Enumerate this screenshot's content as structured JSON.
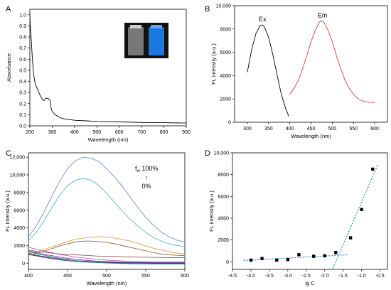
{
  "chart_data": [
    {
      "panel": "A",
      "type": "line",
      "xlabel": "Wavelength (nm)",
      "ylabel": "Absorbance",
      "xlim": [
        200,
        900
      ],
      "ylim": [
        0,
        1.05
      ],
      "x_ticks": [
        200,
        300,
        400,
        500,
        600,
        700,
        800,
        900
      ],
      "y_ticks": [
        0,
        0.1,
        0.2,
        0.3,
        0.4,
        0.5,
        0.6,
        0.7,
        0.8,
        0.9,
        1.0
      ],
      "y_tick_labels": [
        "0.0",
        "0.1",
        "0.2",
        "0.3",
        "0.4",
        "0.5",
        "0.6",
        "0.7",
        "0.8",
        "0.9",
        "1.0"
      ],
      "series": [
        {
          "color": "#000000",
          "x": [
            200,
            202,
            205,
            210,
            215,
            220,
            225,
            230,
            240,
            250,
            258,
            265,
            270,
            280,
            290,
            295,
            300,
            310,
            320,
            330,
            340,
            360,
            400,
            450,
            500,
            600,
            700,
            800,
            900
          ],
          "y": [
            1.0,
            0.9,
            0.82,
            0.65,
            0.5,
            0.42,
            0.37,
            0.35,
            0.3,
            0.26,
            0.23,
            0.23,
            0.245,
            0.25,
            0.23,
            0.16,
            0.13,
            0.105,
            0.09,
            0.08,
            0.07,
            0.06,
            0.05,
            0.045,
            0.04,
            0.035,
            0.03,
            0.028,
            0.025
          ]
        }
      ],
      "inset_colors": [
        "#9a9a9a",
        "#1a78e0"
      ]
    },
    {
      "panel": "B",
      "type": "line",
      "xlabel": "Wavelength (nm)",
      "ylabel": "FL intensity (a.u.)",
      "xlim": [
        270,
        630
      ],
      "ylim": [
        0,
        10000
      ],
      "x_ticks": [
        300,
        350,
        400,
        450,
        500,
        550,
        600
      ],
      "y_ticks": [
        0,
        2000,
        4000,
        6000,
        8000,
        10000
      ],
      "y_tick_labels": [
        "0",
        "2000",
        "4000",
        "6000",
        "8000",
        "10,000"
      ],
      "series": [
        {
          "name": "Ex",
          "color": "#000000",
          "x": [
            300,
            310,
            320,
            330,
            335,
            340,
            350,
            360,
            370,
            380,
            390,
            398
          ],
          "y": [
            4300,
            6200,
            7600,
            8300,
            8350,
            8200,
            7300,
            5800,
            4100,
            2400,
            1200,
            500
          ]
        },
        {
          "name": "Em",
          "color": "#e8382c",
          "x": [
            400,
            410,
            420,
            430,
            440,
            450,
            460,
            470,
            475,
            480,
            490,
            500,
            510,
            520,
            530,
            540,
            550,
            560,
            570,
            580,
            590,
            600
          ],
          "y": [
            2400,
            2900,
            3600,
            4600,
            5700,
            6900,
            7900,
            8600,
            8700,
            8600,
            7900,
            6900,
            5700,
            4600,
            3600,
            2900,
            2400,
            2050,
            1850,
            1750,
            1700,
            1680
          ]
        }
      ]
    },
    {
      "panel": "C",
      "type": "line",
      "xlabel": "Wavelength (nm)",
      "ylabel": "FL intensity (a.u.)",
      "xlim": [
        400,
        600
      ],
      "ylim": [
        -700,
        12500
      ],
      "x_ticks": [
        400,
        450,
        500,
        550,
        600
      ],
      "y_ticks": [
        0,
        2000,
        4000,
        6000,
        8000,
        10000,
        12000
      ],
      "y_tick_labels": [
        "0",
        "2000",
        "4000",
        "6000",
        "8000",
        "10,000",
        "12,000"
      ],
      "x": [
        400,
        410,
        420,
        430,
        440,
        450,
        460,
        470,
        480,
        490,
        500,
        510,
        520,
        530,
        540,
        550,
        560,
        570,
        580,
        590,
        600
      ],
      "series": [
        {
          "color": "#6a8fd6",
          "values": [
            3000,
            4200,
            5800,
            7600,
            9300,
            10700,
            11600,
            12000,
            11900,
            11500,
            10700,
            9800,
            8700,
            7500,
            6300,
            5200,
            4300,
            3500,
            3000,
            2600,
            2400
          ]
        },
        {
          "color": "#52b8d8",
          "values": [
            2600,
            3500,
            4800,
            6300,
            7700,
            8800,
            9400,
            9600,
            9400,
            8800,
            7900,
            6900,
            5900,
            5000,
            4200,
            3500,
            2900,
            2500,
            2200,
            2000,
            1900
          ]
        },
        {
          "color": "#e0a040",
          "values": [
            1100,
            1300,
            1550,
            1850,
            2150,
            2450,
            2700,
            2850,
            2950,
            3000,
            2950,
            2850,
            2700,
            2500,
            2250,
            1950,
            1700,
            1500,
            1300,
            1150,
            1050
          ]
        },
        {
          "color": "#8a6a3a",
          "values": [
            900,
            1100,
            1350,
            1650,
            1950,
            2200,
            2400,
            2500,
            2500,
            2450,
            2350,
            2200,
            2000,
            1800,
            1600,
            1400,
            1200,
            1050,
            950,
            900,
            850
          ]
        },
        {
          "color": "#9a5a5a",
          "values": [
            1500,
            1350,
            1250,
            1150,
            1050,
            1000,
            950,
            900,
            850,
            800,
            780,
            750,
            730,
            710,
            690,
            680,
            660,
            650,
            640,
            630,
            620
          ]
        },
        {
          "color": "#c060c0",
          "values": [
            1800,
            1600,
            1400,
            1200,
            1000,
            850,
            700,
            600,
            500,
            400,
            350,
            300,
            250,
            220,
            200,
            180,
            170,
            160,
            150,
            150,
            150
          ]
        },
        {
          "color": "#7a40b0",
          "values": [
            1400,
            1200,
            1000,
            850,
            700,
            550,
            450,
            350,
            280,
            220,
            180,
            150,
            120,
            100,
            90,
            80,
            70,
            60,
            60,
            60,
            60
          ]
        },
        {
          "color": "#303080",
          "values": [
            1100,
            900,
            750,
            600,
            480,
            380,
            300,
            230,
            180,
            140,
            110,
            90,
            70,
            60,
            50,
            40,
            30,
            30,
            30,
            30,
            30
          ]
        },
        {
          "color": "#404040",
          "values": [
            1000,
            820,
            650,
            500,
            380,
            280,
            200,
            140,
            100,
            70,
            50,
            30,
            20,
            10,
            0,
            -10,
            -20,
            -20,
            -20,
            -20,
            -20
          ]
        },
        {
          "color": "#2a8a8a",
          "values": [
            1300,
            1100,
            900,
            720,
            560,
            420,
            300,
            200,
            120,
            60,
            20,
            -10,
            -40,
            -60,
            -70,
            -80,
            -90,
            -90,
            -90,
            -90,
            -90
          ]
        }
      ],
      "annotation": {
        "line1": "f",
        "line1_sub": "w",
        "line1_rest": " 100%",
        "arrow": "↑",
        "line2": "0%"
      }
    },
    {
      "panel": "D",
      "type": "scatter",
      "xlabel": "lg C",
      "ylabel": "FL intensity (a.u.)",
      "xlim": [
        -4.5,
        -0.3
      ],
      "ylim": [
        -700,
        10000
      ],
      "x_ticks": [
        -4.5,
        -4.0,
        -3.5,
        -3.0,
        -2.5,
        -2.0,
        -1.5,
        -1.0,
        -0.5
      ],
      "x_tick_labels": [
        "-4.5",
        "-4.0",
        "-3.5",
        "-3.0",
        "-2.5",
        "-2.0",
        "-1.5",
        "-1.0",
        "-0.5"
      ],
      "y_ticks": [
        0,
        2000,
        4000,
        6000,
        8000,
        10000
      ],
      "y_tick_labels": [
        "0",
        "2000",
        "4000",
        "6000",
        "8000",
        "10,000"
      ],
      "points": [
        {
          "x": -4.0,
          "y": 150
        },
        {
          "x": -3.7,
          "y": 300
        },
        {
          "x": -3.3,
          "y": 150
        },
        {
          "x": -3.0,
          "y": 200
        },
        {
          "x": -2.7,
          "y": 650
        },
        {
          "x": -2.3,
          "y": 500
        },
        {
          "x": -2.0,
          "y": 550
        },
        {
          "x": -1.7,
          "y": 850
        },
        {
          "x": -1.3,
          "y": 2200
        },
        {
          "x": -1.0,
          "y": 4800
        },
        {
          "x": -0.7,
          "y": 8500
        }
      ],
      "fit_lines": [
        {
          "x": [
            -4.2,
            -1.35
          ],
          "y": [
            120,
            650
          ]
        },
        {
          "x": [
            -1.78,
            -0.55
          ],
          "y": [
            -600,
            9000
          ]
        }
      ],
      "fit_color": "#2a8fc4"
    }
  ]
}
